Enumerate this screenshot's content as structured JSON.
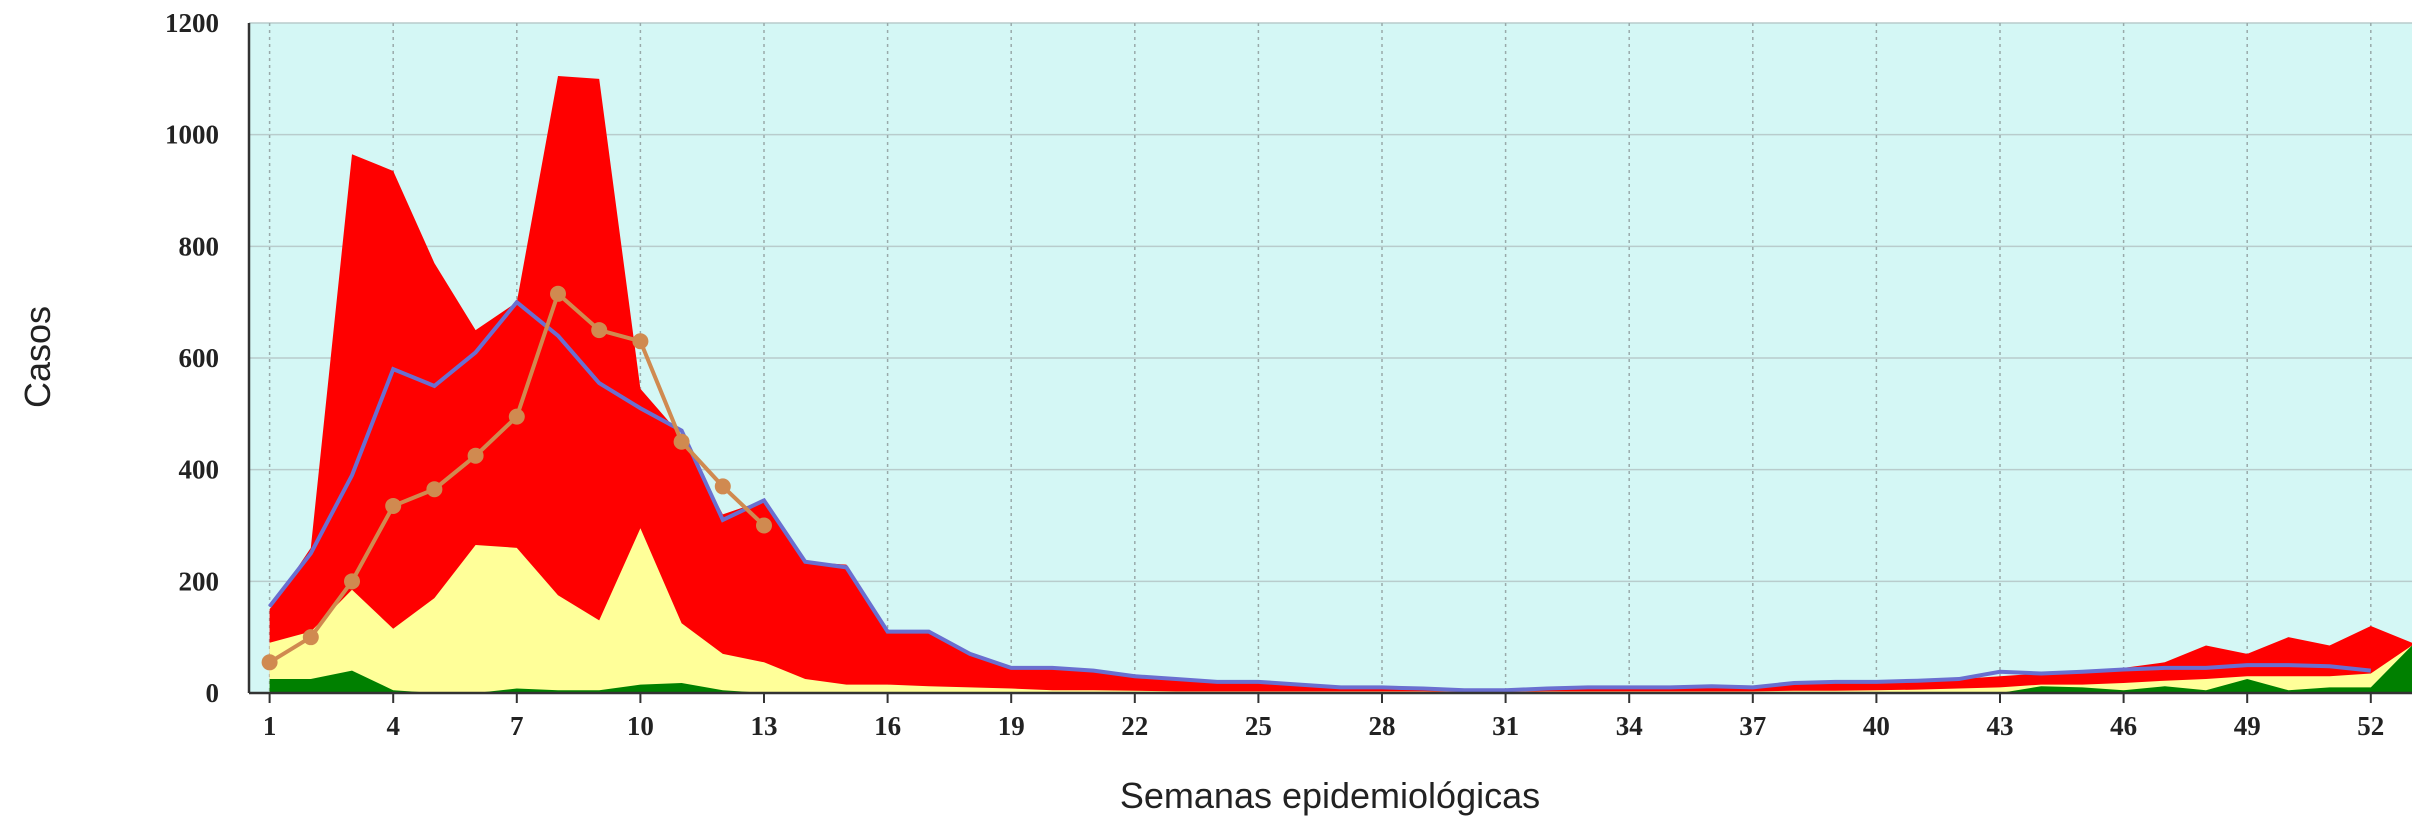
{
  "chart_data": {
    "type": "area",
    "xlabel": "Semanas epidemiológicas",
    "ylabel": "Casos",
    "background": "#d4f7f5",
    "grid": true,
    "x": [
      1,
      2,
      3,
      4,
      5,
      6,
      7,
      8,
      9,
      10,
      11,
      12,
      13,
      14,
      15,
      16,
      17,
      18,
      19,
      20,
      21,
      22,
      23,
      24,
      25,
      26,
      27,
      28,
      29,
      30,
      31,
      32,
      33,
      34,
      35,
      36,
      37,
      38,
      39,
      40,
      41,
      42,
      43,
      44,
      45,
      46,
      47,
      48,
      49,
      50,
      51,
      52,
      53
    ],
    "xlim": [
      0.5,
      53
    ],
    "xticks": [
      1,
      4,
      7,
      10,
      13,
      16,
      19,
      22,
      25,
      28,
      31,
      34,
      37,
      40,
      43,
      46,
      49,
      52
    ],
    "ylim": [
      0,
      1200
    ],
    "yticks": [
      0,
      200,
      400,
      600,
      800,
      1000,
      1200
    ],
    "series": [
      {
        "color": "#ff0000",
        "kind": "area",
        "values": [
          150,
          260,
          965,
          935,
          770,
          650,
          700,
          1105,
          1100,
          545,
          460,
          320,
          345,
          235,
          230,
          110,
          110,
          70,
          45,
          45,
          40,
          30,
          25,
          20,
          20,
          15,
          10,
          10,
          8,
          5,
          5,
          8,
          10,
          10,
          10,
          12,
          10,
          18,
          20,
          22,
          22,
          25,
          30,
          35,
          38,
          45,
          55,
          85,
          70,
          100,
          85,
          120,
          90
        ]
      },
      {
        "color": "#ffff99",
        "kind": "area",
        "values": [
          90,
          110,
          185,
          115,
          170,
          265,
          260,
          175,
          130,
          295,
          125,
          70,
          55,
          25,
          15,
          15,
          12,
          10,
          8,
          5,
          5,
          4,
          3,
          3,
          3,
          3,
          3,
          3,
          3,
          2,
          2,
          3,
          3,
          3,
          3,
          3,
          3,
          4,
          4,
          5,
          6,
          8,
          10,
          15,
          15,
          18,
          22,
          25,
          30,
          30,
          30,
          35,
          85
        ]
      },
      {
        "color": "#008000",
        "kind": "area",
        "values": [
          25,
          25,
          40,
          5,
          0,
          0,
          8,
          5,
          5,
          15,
          18,
          5,
          0,
          0,
          0,
          0,
          0,
          0,
          0,
          0,
          0,
          0,
          0,
          0,
          0,
          0,
          0,
          0,
          0,
          0,
          0,
          0,
          0,
          0,
          0,
          0,
          0,
          0,
          0,
          0,
          0,
          0,
          0,
          12,
          10,
          5,
          12,
          5,
          25,
          5,
          10,
          10,
          85
        ]
      },
      {
        "color": "#6a6fd0",
        "kind": "line",
        "values": [
          155,
          250,
          390,
          580,
          550,
          610,
          700,
          640,
          555,
          510,
          470,
          310,
          345,
          235,
          225,
          110,
          110,
          70,
          45,
          45,
          40,
          30,
          25,
          20,
          20,
          15,
          10,
          10,
          8,
          5,
          5,
          8,
          10,
          10,
          10,
          12,
          10,
          18,
          20,
          20,
          22,
          25,
          38,
          35,
          38,
          42,
          45,
          45,
          50,
          50,
          48,
          40,
          null
        ]
      },
      {
        "color": "#d08a50",
        "kind": "line",
        "markers": true,
        "values": [
          55,
          100,
          200,
          335,
          365,
          425,
          495,
          715,
          650,
          630,
          450,
          370,
          300,
          null,
          null,
          null,
          null,
          null,
          null,
          null,
          null,
          null,
          null,
          null,
          null,
          null,
          null,
          null,
          null,
          null,
          null,
          null,
          null,
          null,
          null,
          null,
          null,
          null,
          null,
          null,
          null,
          null,
          null,
          null,
          null,
          null,
          null,
          null,
          null,
          null,
          null,
          null,
          null
        ]
      }
    ]
  }
}
